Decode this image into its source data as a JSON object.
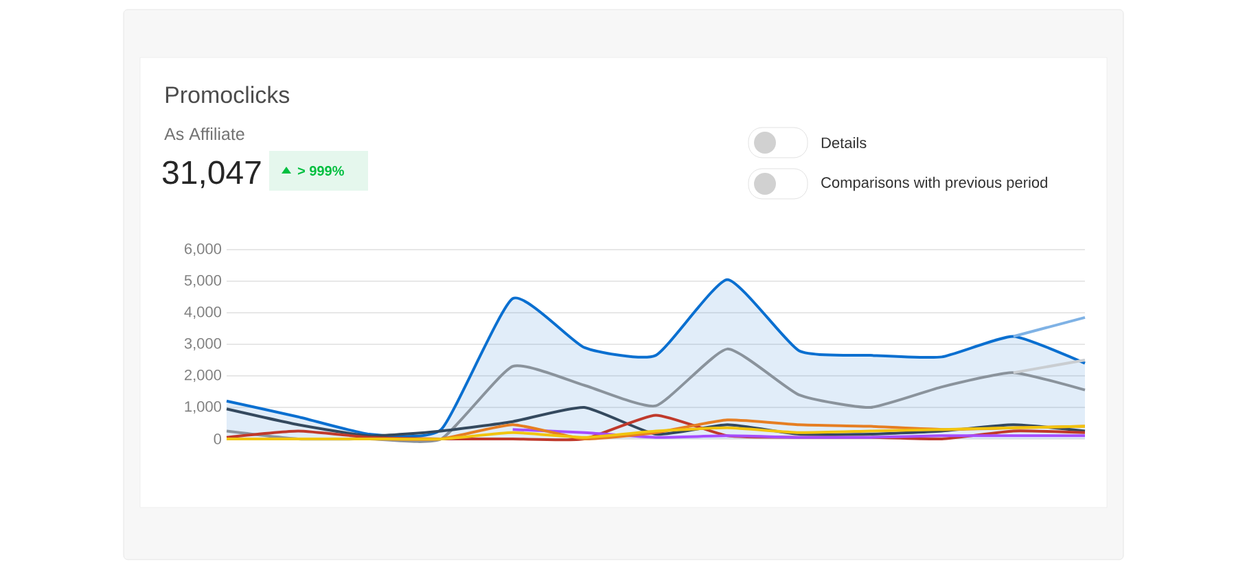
{
  "chart_data": {
    "type": "line",
    "title": "Promoclicks",
    "subtitle": "As Affiliate",
    "annotations": [
      "31,047",
      "> 999%",
      "Details",
      "Comparisons with previous period"
    ],
    "categories": [
      null,
      null,
      null,
      null,
      null,
      null,
      null,
      null,
      null,
      null,
      null,
      null,
      null
    ],
    "series": [
      {
        "type": "area",
        "color": "#0a6fd0",
        "values": [
          1200,
          700,
          150,
          300,
          4450,
          2900,
          2650,
          5050,
          2800,
          2650,
          2600,
          3250,
          2400
        ]
      },
      {
        "color": "#8a939c",
        "values": [
          250,
          0,
          0,
          0,
          2300,
          1700,
          1050,
          2850,
          1400,
          1000,
          1650,
          2100,
          1550
        ]
      },
      {
        "color": "#7fb2e5",
        "values": [
          null,
          null,
          null,
          null,
          null,
          null,
          null,
          null,
          null,
          null,
          null,
          3250,
          3850
        ]
      },
      {
        "color": "#c9cdd1",
        "values": [
          null,
          null,
          null,
          null,
          null,
          null,
          null,
          null,
          null,
          null,
          null,
          2100,
          2500
        ]
      },
      {
        "color": "#34495e",
        "values": [
          950,
          450,
          100,
          250,
          550,
          1000,
          150,
          450,
          150,
          150,
          250,
          450,
          250
        ]
      },
      {
        "color": "#c0392b",
        "values": [
          50,
          250,
          50,
          0,
          0,
          0,
          750,
          100,
          50,
          50,
          0,
          250,
          200
        ]
      },
      {
        "color": "#a64dff",
        "values": [
          null,
          null,
          null,
          null,
          300,
          200,
          50,
          100,
          50,
          50,
          100,
          100,
          100
        ]
      },
      {
        "color": "#e67e22",
        "values": [
          0,
          0,
          0,
          0,
          450,
          0,
          200,
          600,
          450,
          400,
          300,
          350,
          400
        ]
      },
      {
        "color": "#f1c40f",
        "values": [
          0,
          0,
          0,
          0,
          200,
          50,
          250,
          350,
          200,
          250,
          300,
          350,
          400
        ]
      }
    ],
    "ylim": [
      0,
      6000
    ],
    "yticks": [
      {
        "value": 0,
        "label": "0"
      },
      {
        "value": 1000,
        "label": "1,000"
      },
      {
        "value": 2000,
        "label": "2,000"
      },
      {
        "value": 3000,
        "label": "3,000"
      },
      {
        "value": 4000,
        "label": "4,000"
      },
      {
        "value": 5000,
        "label": "5,000"
      },
      {
        "value": 6000,
        "label": "6,000"
      }
    ],
    "grid": "y",
    "tick_labels": "y"
  }
}
